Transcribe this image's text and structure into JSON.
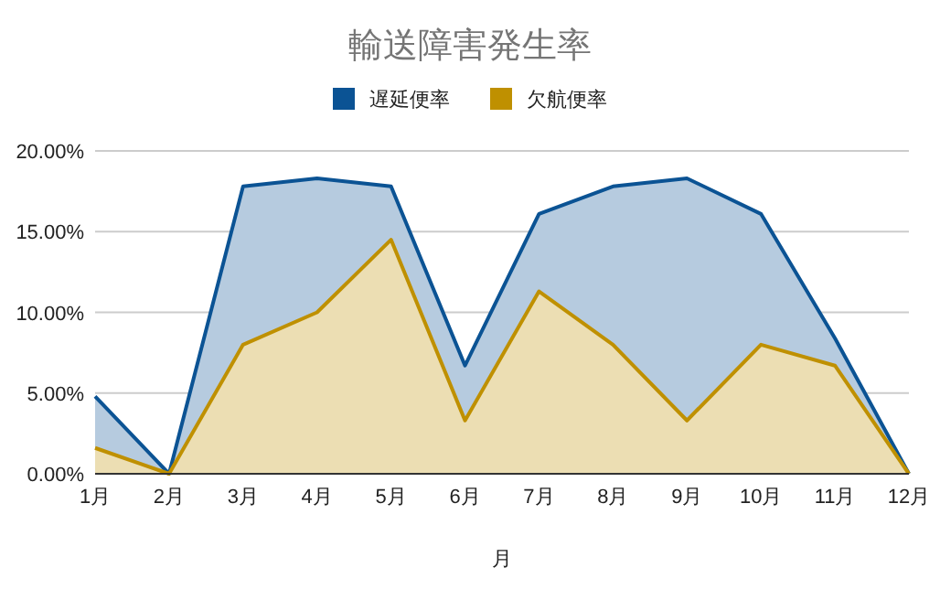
{
  "chart_data": {
    "type": "area",
    "title": "輸送障害発生率",
    "xlabel": "月",
    "categories": [
      "1月",
      "2月",
      "3月",
      "4月",
      "5月",
      "6月",
      "7月",
      "8月",
      "9月",
      "10月",
      "11月",
      "12月"
    ],
    "series": [
      {
        "name": "遅延便率",
        "color": "#0b5394",
        "values": [
          4.8,
          0,
          17.8,
          18.3,
          17.8,
          6.7,
          16.1,
          17.8,
          18.3,
          16.1,
          8.4,
          0
        ]
      },
      {
        "name": "欠航便率",
        "color": "#bf9000",
        "values": [
          1.6,
          0,
          8.0,
          10.0,
          14.5,
          3.3,
          11.3,
          8.0,
          3.3,
          8.0,
          6.7,
          0
        ]
      }
    ],
    "ylim": [
      0,
      20
    ],
    "yticks": [
      {
        "value": 0,
        "label": "0.00%"
      },
      {
        "value": 5,
        "label": "5.00%"
      },
      {
        "value": 10,
        "label": "10.00%"
      },
      {
        "value": 15,
        "label": "15.00%"
      },
      {
        "value": 20,
        "label": "20.00%"
      }
    ],
    "grid": "y",
    "legend": "top"
  }
}
